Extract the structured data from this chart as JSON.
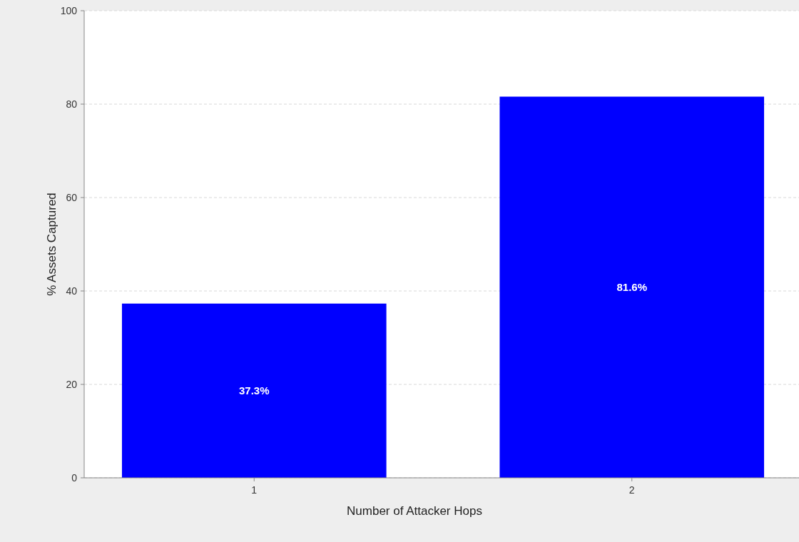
{
  "chart_data": {
    "type": "bar",
    "xlabel": "Number of Attacker Hops",
    "ylabel": "% Assets Captured",
    "categories": [
      "1",
      "2"
    ],
    "values": [
      37.3,
      81.6
    ],
    "color": "#0000ff",
    "value_labels": [
      "37.3%",
      "81.6%"
    ],
    "ylim": [
      0,
      100
    ],
    "yticks": [
      0,
      20,
      40,
      60,
      80,
      100
    ],
    "grid": "y"
  }
}
